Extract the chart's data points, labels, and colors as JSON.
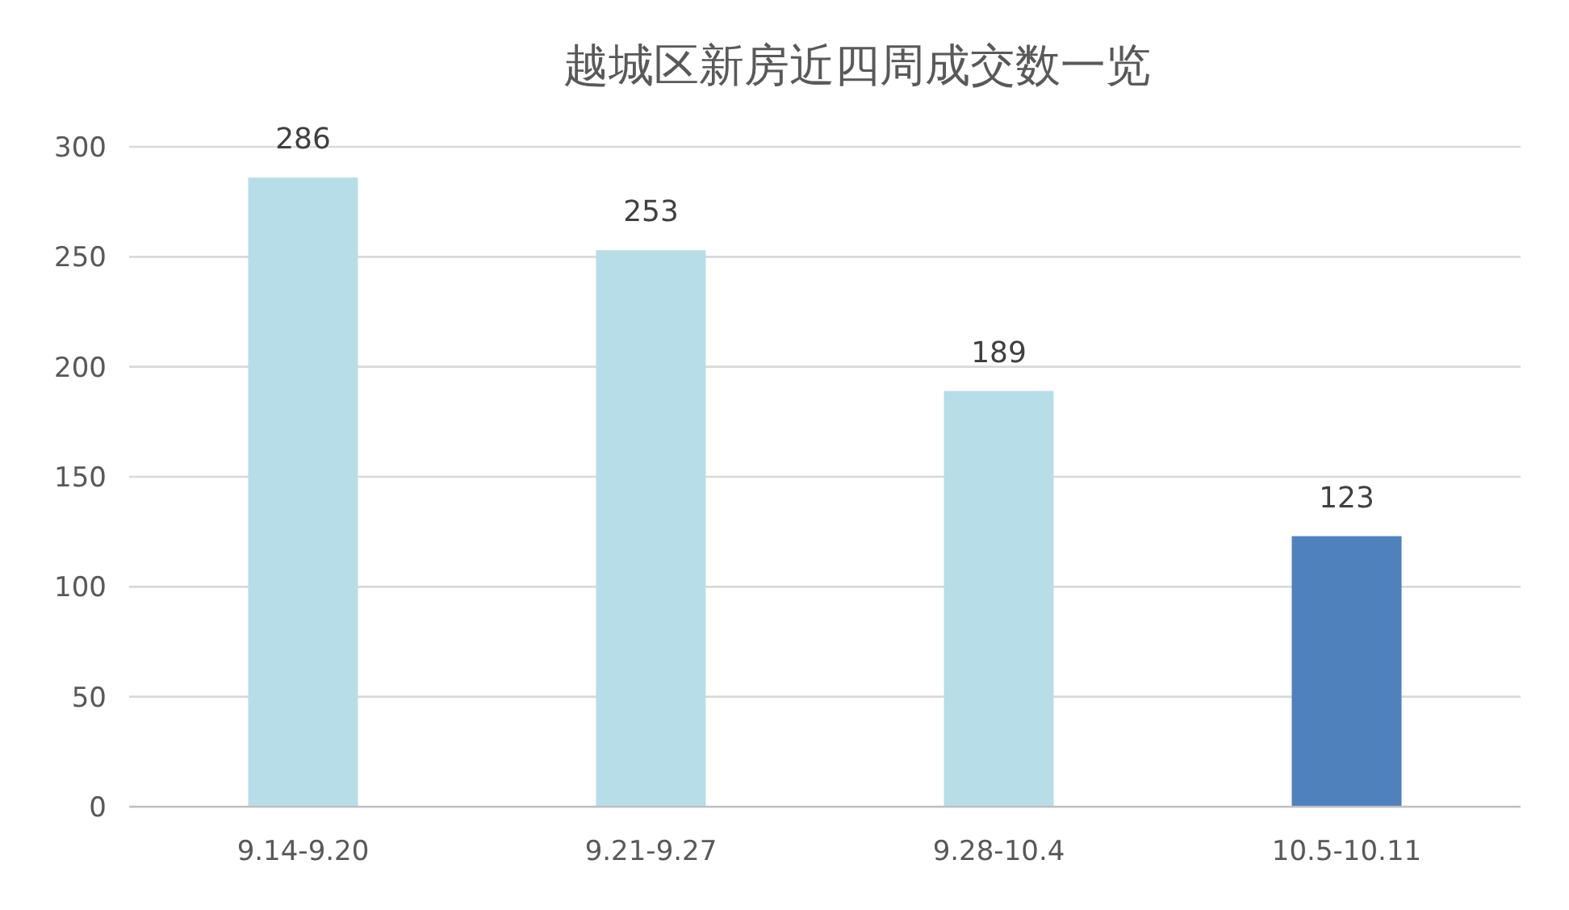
{
  "chart_data": {
    "type": "bar",
    "title": "越城区新房近四周成交数一览",
    "categories": [
      "9.14-9.20",
      "9.21-9.27",
      "9.28-10.4",
      "10.5-10.11"
    ],
    "values": [
      286,
      253,
      189,
      123
    ],
    "colors": [
      "#b7dde8",
      "#b7dde8",
      "#b7dde8",
      "#4f81bd"
    ],
    "ylim": [
      0,
      300
    ],
    "yticks": [
      0,
      50,
      100,
      150,
      200,
      250,
      300
    ],
    "grid": "y",
    "data_labels": true
  }
}
